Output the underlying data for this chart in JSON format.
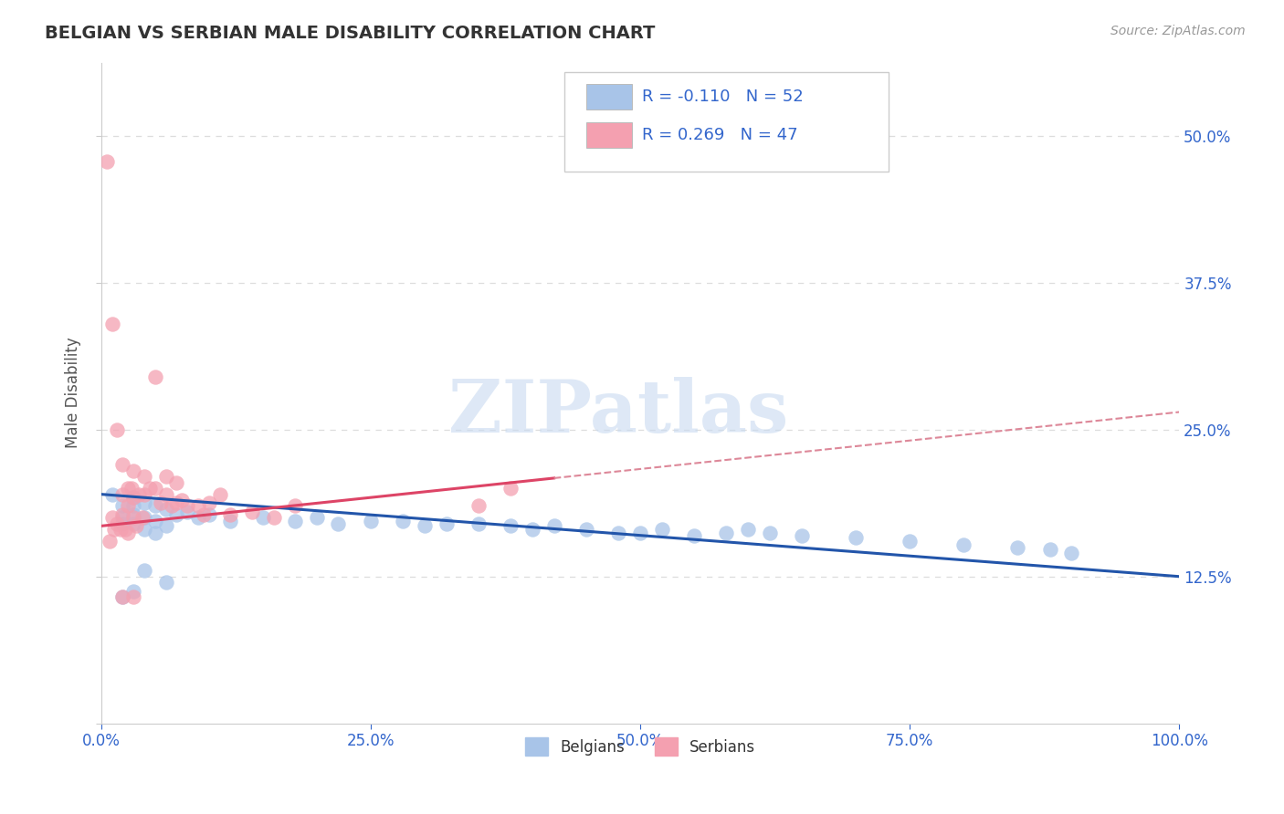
{
  "title": "BELGIAN VS SERBIAN MALE DISABILITY CORRELATION CHART",
  "source": "Source: ZipAtlas.com",
  "ylabel": "Male Disability",
  "xlim": [
    0,
    1.0
  ],
  "ylim": [
    0,
    0.5625
  ],
  "xticks": [
    0.0,
    0.25,
    0.5,
    0.75,
    1.0
  ],
  "xtick_labels": [
    "0.0%",
    "25.0%",
    "50.0%",
    "75.0%",
    "100.0%"
  ],
  "yticks": [
    0.0,
    0.125,
    0.25,
    0.375,
    0.5
  ],
  "ytick_labels": [
    "",
    "12.5%",
    "25.0%",
    "37.5%",
    "50.0%"
  ],
  "belgian_color": "#a8c4e8",
  "serbian_color": "#f4a0b0",
  "belgian_line_color": "#2255aa",
  "serbian_line_color": "#dd4466",
  "serbian_dash_color": "#dd8899",
  "r_belgian": -0.11,
  "n_belgian": 52,
  "r_serbian": 0.269,
  "n_serbian": 47,
  "grid_color": "#dddddd",
  "grid_dash": [
    4,
    4
  ],
  "watermark": "ZIPatlas",
  "watermark_color": "#c8daf0",
  "legend_belgian_label": "Belgians",
  "legend_serbian_label": "Serbians",
  "belgian_x": [
    0.01,
    0.02,
    0.02,
    0.02,
    0.03,
    0.03,
    0.03,
    0.03,
    0.04,
    0.04,
    0.04,
    0.05,
    0.05,
    0.05,
    0.06,
    0.06,
    0.07,
    0.08,
    0.09,
    0.1,
    0.12,
    0.15,
    0.18,
    0.2,
    0.22,
    0.25,
    0.28,
    0.3,
    0.32,
    0.35,
    0.38,
    0.4,
    0.42,
    0.45,
    0.48,
    0.5,
    0.52,
    0.55,
    0.58,
    0.6,
    0.62,
    0.65,
    0.7,
    0.75,
    0.8,
    0.85,
    0.88,
    0.9,
    0.02,
    0.03,
    0.04,
    0.06
  ],
  "belgian_y": [
    0.195,
    0.185,
    0.175,
    0.17,
    0.192,
    0.185,
    0.178,
    0.17,
    0.188,
    0.175,
    0.165,
    0.185,
    0.172,
    0.162,
    0.182,
    0.168,
    0.178,
    0.18,
    0.175,
    0.178,
    0.172,
    0.175,
    0.172,
    0.175,
    0.17,
    0.172,
    0.172,
    0.168,
    0.17,
    0.17,
    0.168,
    0.165,
    0.168,
    0.165,
    0.162,
    0.162,
    0.165,
    0.16,
    0.162,
    0.165,
    0.162,
    0.16,
    0.158,
    0.155,
    0.152,
    0.15,
    0.148,
    0.145,
    0.108,
    0.112,
    0.13,
    0.12
  ],
  "serbian_x": [
    0.005,
    0.008,
    0.01,
    0.01,
    0.012,
    0.015,
    0.015,
    0.018,
    0.02,
    0.02,
    0.02,
    0.022,
    0.025,
    0.025,
    0.025,
    0.028,
    0.03,
    0.03,
    0.03,
    0.032,
    0.035,
    0.038,
    0.04,
    0.04,
    0.045,
    0.05,
    0.055,
    0.06,
    0.065,
    0.07,
    0.075,
    0.08,
    0.09,
    0.095,
    0.1,
    0.11,
    0.12,
    0.14,
    0.16,
    0.18,
    0.02,
    0.03,
    0.35,
    0.38,
    0.05,
    0.06,
    0.07
  ],
  "serbian_y": [
    0.478,
    0.155,
    0.34,
    0.175,
    0.165,
    0.25,
    0.17,
    0.165,
    0.22,
    0.195,
    0.178,
    0.165,
    0.2,
    0.185,
    0.162,
    0.2,
    0.215,
    0.192,
    0.175,
    0.168,
    0.195,
    0.175,
    0.21,
    0.195,
    0.2,
    0.2,
    0.188,
    0.195,
    0.185,
    0.188,
    0.19,
    0.185,
    0.185,
    0.178,
    0.188,
    0.195,
    0.178,
    0.18,
    0.175,
    0.185,
    0.108,
    0.108,
    0.185,
    0.2,
    0.295,
    0.21,
    0.205
  ]
}
